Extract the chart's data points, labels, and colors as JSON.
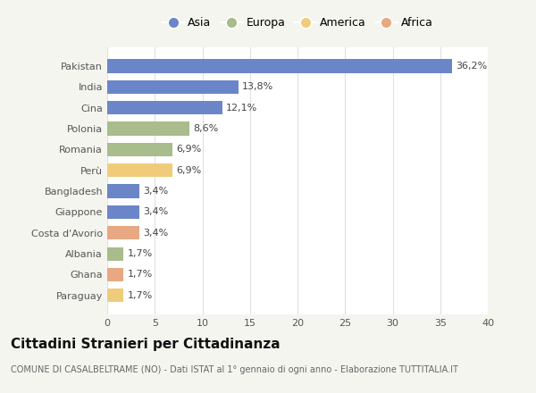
{
  "countries": [
    "Pakistan",
    "India",
    "Cina",
    "Polonia",
    "Romania",
    "Perù",
    "Bangladesh",
    "Giappone",
    "Costa d'Avorio",
    "Albania",
    "Ghana",
    "Paraguay"
  ],
  "values": [
    36.2,
    13.8,
    12.1,
    8.6,
    6.9,
    6.9,
    3.4,
    3.4,
    3.4,
    1.7,
    1.7,
    1.7
  ],
  "labels": [
    "36,2%",
    "13,8%",
    "12,1%",
    "8,6%",
    "6,9%",
    "6,9%",
    "3,4%",
    "3,4%",
    "3,4%",
    "1,7%",
    "1,7%",
    "1,7%"
  ],
  "colors": [
    "#6b86c8",
    "#6b86c8",
    "#6b86c8",
    "#a8bc8c",
    "#a8bc8c",
    "#f0cc7a",
    "#6b86c8",
    "#6b86c8",
    "#e8a882",
    "#a8bc8c",
    "#e8a882",
    "#f0cc7a"
  ],
  "legend_labels": [
    "Asia",
    "Europa",
    "America",
    "Africa"
  ],
  "legend_colors": [
    "#6b86c8",
    "#a8bc8c",
    "#f0cc7a",
    "#e8a882"
  ],
  "title": "Cittadini Stranieri per Cittadinanza",
  "subtitle": "COMUNE DI CASALBELTRAME (NO) - Dati ISTAT al 1° gennaio di ogni anno - Elaborazione TUTTITALIA.IT",
  "xlim": [
    0,
    40
  ],
  "xticks": [
    0,
    5,
    10,
    15,
    20,
    25,
    30,
    35,
    40
  ],
  "bg_color": "#f5f5f0",
  "plot_bg_color": "#ffffff",
  "grid_color": "#e0e0e0",
  "title_fontsize": 11,
  "subtitle_fontsize": 7,
  "tick_fontsize": 8,
  "label_fontsize": 8,
  "legend_fontsize": 9
}
